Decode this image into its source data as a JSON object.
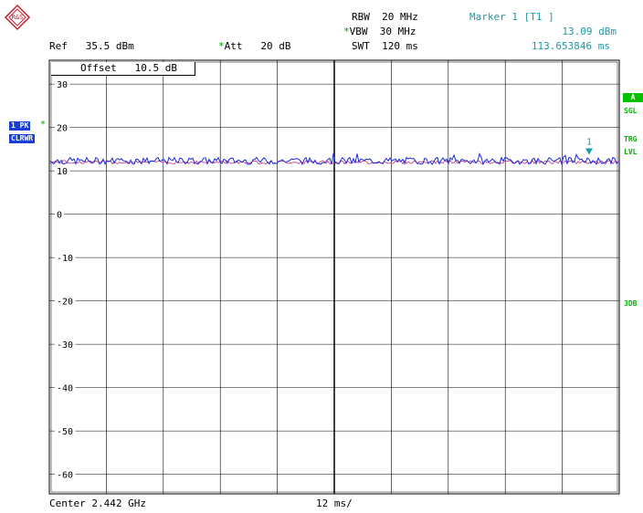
{
  "logo": {
    "text": "R&S"
  },
  "header": {
    "rbw_label": "RBW",
    "rbw_value": "20 MHz",
    "vbw_star": "*",
    "vbw_label": "VBW",
    "vbw_value": "30 MHz",
    "swt_label": "SWT",
    "swt_value": "120 ms",
    "ref_label": "Ref",
    "ref_value": "35.5 dBm",
    "att_star": "*",
    "att_label": "Att",
    "att_value": "20 dB"
  },
  "marker": {
    "title": "Marker 1 [T1 ]",
    "level": "13.09 dBm",
    "time": "113.653846 ms",
    "number": "1",
    "x_ms": 113.65,
    "y_dbm": 13.09
  },
  "left_panel": {
    "trace_tag": "1 PK",
    "trace_star": "*",
    "mode_tag": "CLRWR"
  },
  "right_panel": {
    "a": "A",
    "sgl": "SGL",
    "trg": "TRG",
    "lvl": "LVL",
    "db3": "3DB"
  },
  "plot": {
    "offset_label": "Offset",
    "offset_value": "10.5 dB",
    "y_ticks": [
      "30",
      "20",
      "10",
      "0",
      "-10",
      "-20",
      "-30",
      "-40",
      "-50",
      "-60"
    ],
    "trace_color": "#1a2be0",
    "trace2_color": "#c0307a",
    "trace_mean_dbm": 12.3
  },
  "footer": {
    "center": "Center 2.442 GHz",
    "per_div": "12 ms/"
  },
  "chart_data": {
    "type": "line",
    "xlim": [
      0,
      120
    ],
    "ylim": [
      -64.5,
      35.5
    ],
    "ylabel": "",
    "xlabel": "",
    "grid": true,
    "series": [
      {
        "values_approx_dbm": 12.3
      }
    ]
  }
}
